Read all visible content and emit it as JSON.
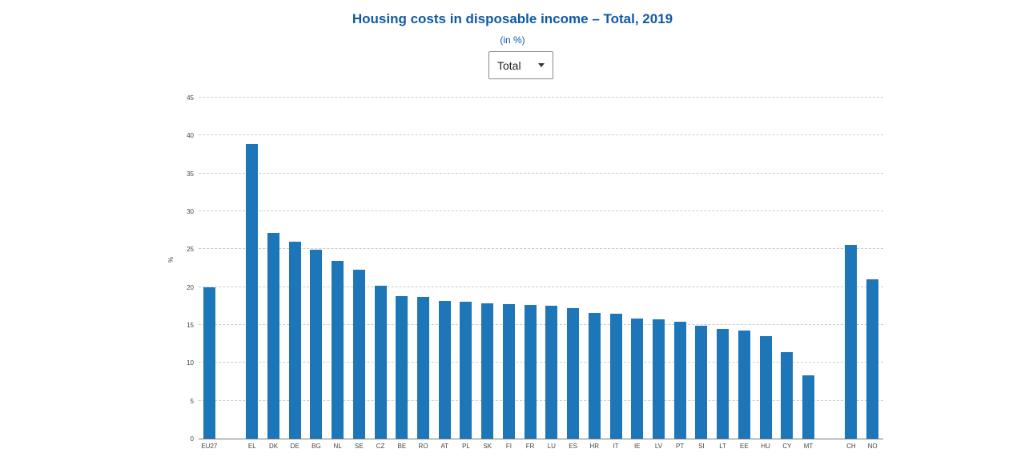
{
  "dropdown": {
    "value": "Total"
  },
  "chart_data": {
    "type": "bar",
    "title": "Housing costs in disposable income – Total, 2019",
    "subtitle": "(in %)",
    "xlabel": "",
    "ylabel": "%",
    "ylim": [
      0,
      45
    ],
    "ytick_interval": 5,
    "grid": true,
    "legend": false,
    "bar_color": "#1d76b8",
    "categories": [
      "EU27",
      "EL",
      "DK",
      "DE",
      "BG",
      "NL",
      "SE",
      "CZ",
      "BE",
      "RO",
      "AT",
      "PL",
      "SK",
      "FI",
      "FR",
      "LU",
      "ES",
      "HR",
      "IT",
      "IE",
      "LV",
      "PT",
      "SI",
      "LT",
      "EE",
      "HU",
      "CY",
      "MT",
      "CH",
      "NO"
    ],
    "values": [
      20.0,
      38.9,
      27.1,
      26.0,
      24.9,
      23.4,
      22.3,
      20.2,
      18.8,
      18.7,
      18.2,
      18.1,
      17.9,
      17.8,
      17.6,
      17.5,
      17.2,
      16.6,
      16.5,
      15.8,
      15.7,
      15.4,
      14.9,
      14.5,
      14.3,
      13.5,
      11.4,
      8.3,
      25.6,
      21.0
    ],
    "group_breaks_after": [
      "EU27",
      "MT"
    ]
  }
}
